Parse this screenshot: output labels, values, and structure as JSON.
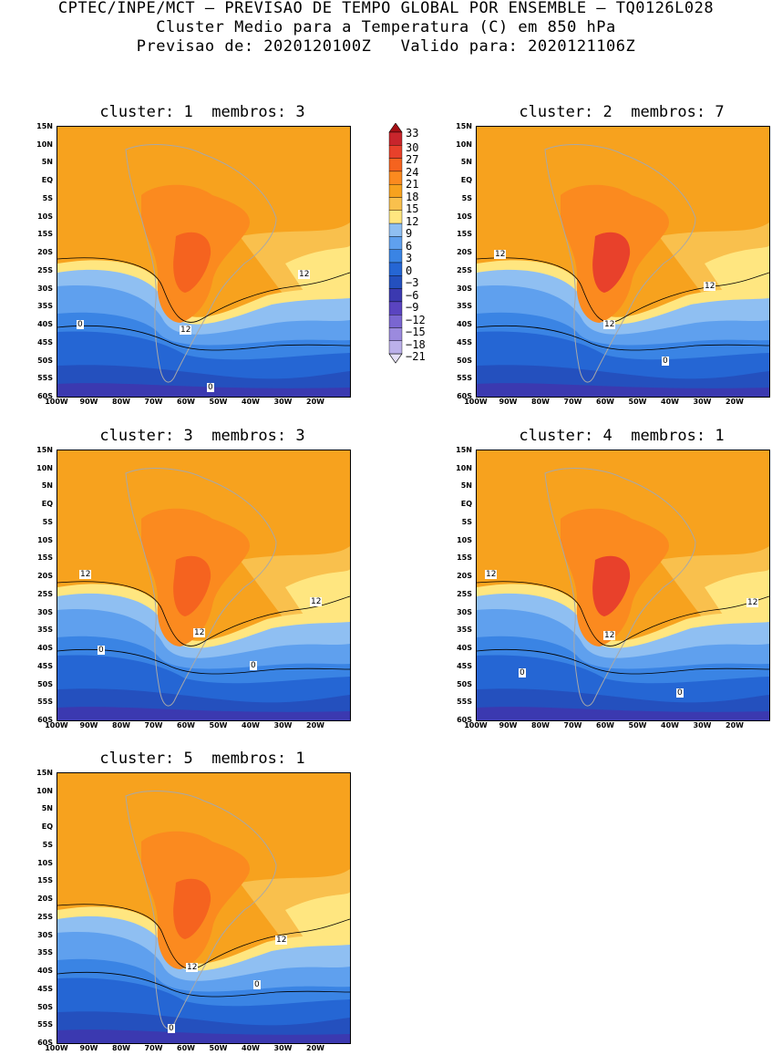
{
  "header": {
    "line1": "CPTEC/INPE/MCT – PREVISAO DE TEMPO GLOBAL POR ENSEMBLE – TQ0126L028",
    "line2": "Cluster Medio para a Temperatura (C) em 850 hPa",
    "line3": "Previsao de: 2020120100Z   Valido para: 2020121106Z"
  },
  "panels": [
    {
      "title": "cluster: 1  membros: 3",
      "labels": [
        "12",
        "12",
        "0",
        "0"
      ]
    },
    {
      "title": "cluster: 2  membros: 7",
      "labels": [
        "12",
        "12",
        "12",
        "0"
      ]
    },
    {
      "title": "cluster: 3  membros: 3",
      "labels": [
        "12",
        "12",
        "12",
        "0",
        "0"
      ]
    },
    {
      "title": "cluster: 4  membros: 1",
      "labels": [
        "12",
        "12",
        "12",
        "0",
        "0"
      ]
    },
    {
      "title": "cluster: 5  membros: 1",
      "labels": [
        "12",
        "12",
        "0",
        "0"
      ]
    }
  ],
  "lat_ticks": [
    "15N",
    "10N",
    "5N",
    "EQ",
    "5S",
    "10S",
    "15S",
    "20S",
    "25S",
    "30S",
    "35S",
    "40S",
    "45S",
    "50S",
    "55S",
    "60S"
  ],
  "lon_ticks": [
    "100W",
    "90W",
    "80W",
    "70W",
    "60W",
    "50W",
    "40W",
    "30W",
    "20W"
  ],
  "colorbar": {
    "labels": [
      "33",
      "30",
      "27",
      "24",
      "21",
      "18",
      "15",
      "12",
      "9",
      "6",
      "3",
      "0",
      "−3",
      "−6",
      "−9",
      "−12",
      "−15",
      "−18",
      "−21"
    ],
    "colors": [
      "#a50f15",
      "#c8252c",
      "#e8412b",
      "#f5631f",
      "#fb8a1f",
      "#f7a21e",
      "#f9c04d",
      "#ffe680",
      "#8fbff2",
      "#5fa0ee",
      "#3a84e4",
      "#2566d4",
      "#2450be",
      "#3b39b0",
      "#5a44c0",
      "#7a66d1",
      "#9b8ade",
      "#bbb0ea",
      "#e5e0f7"
    ]
  }
}
